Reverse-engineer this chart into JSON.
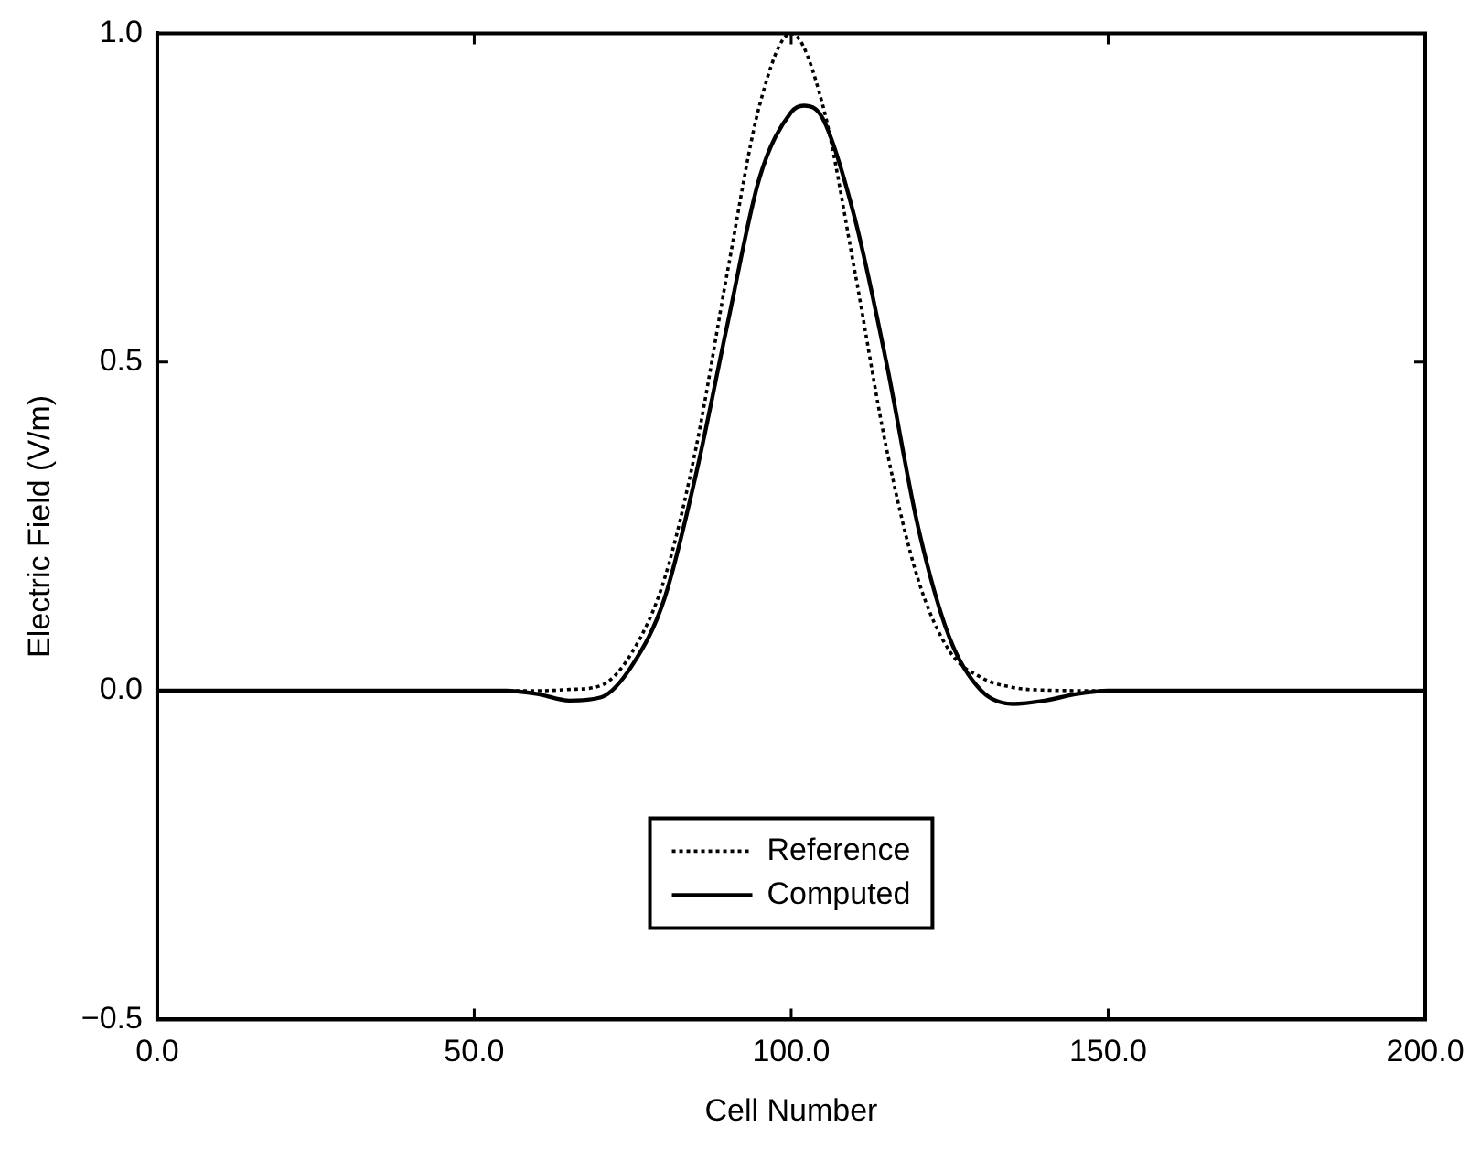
{
  "chart_data": {
    "type": "line",
    "xlabel": "Cell Number",
    "ylabel": "Electric Field (V/m)",
    "xlim": [
      0,
      200
    ],
    "xticks": [
      {
        "value": 0,
        "label": "0.0"
      },
      {
        "value": 50,
        "label": "50.0"
      },
      {
        "value": 100,
        "label": "100.0"
      },
      {
        "value": 150,
        "label": "150.0"
      },
      {
        "value": 200,
        "label": "200.0"
      }
    ],
    "ylim": [
      -0.5,
      1
    ],
    "yticks": [
      {
        "value": -0.5,
        "label": "−0.5"
      },
      {
        "value": 0,
        "label": "0.0"
      },
      {
        "value": 0.5,
        "label": "0.5"
      },
      {
        "value": 1,
        "label": "1.0"
      }
    ],
    "grid": false,
    "legend": "bottom",
    "marker": "none",
    "series": [
      {
        "name": "Reference",
        "color": "#000000",
        "line_style": "dotted",
        "x": [
          0,
          60,
          65,
          70,
          75,
          80,
          85,
          90,
          95,
          100,
          105,
          110,
          115,
          120,
          125,
          130,
          135,
          140,
          150,
          200
        ],
        "values": [
          0,
          0,
          0.002,
          0.008,
          0.06,
          0.17,
          0.37,
          0.64,
          0.89,
          1.0,
          0.89,
          0.64,
          0.37,
          0.17,
          0.06,
          0.02,
          0.005,
          0.001,
          0,
          0
        ]
      },
      {
        "name": "Computed",
        "color": "#000000",
        "line_style": "solid",
        "x": [
          0,
          55,
          60,
          65,
          70,
          75,
          80,
          85,
          90,
          95,
          100,
          102,
          105,
          110,
          115,
          120,
          125,
          130,
          135,
          140,
          145,
          150,
          200
        ],
        "values": [
          0,
          0,
          -0.005,
          -0.015,
          -0.01,
          0.04,
          0.14,
          0.33,
          0.56,
          0.78,
          0.88,
          0.89,
          0.87,
          0.72,
          0.5,
          0.25,
          0.08,
          0.0,
          -0.02,
          -0.015,
          -0.005,
          0,
          0
        ]
      }
    ]
  }
}
